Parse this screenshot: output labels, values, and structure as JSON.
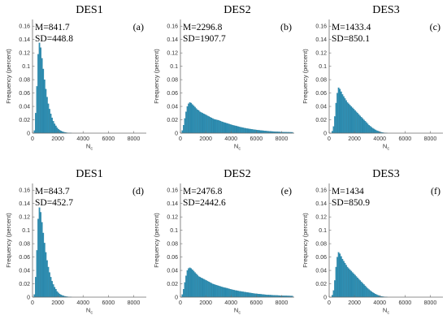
{
  "figure": {
    "bar_color": "#2e8fb3",
    "bar_edge_color": "#1f6f8f"
  },
  "chart_data": [
    {
      "type": "bar",
      "title": "DES1",
      "panel_letter": "(a)",
      "mean_text": "M=841.7",
      "sd_text": "SD=448.8",
      "mean": 841.7,
      "sd": 448.8,
      "xlabel": "N",
      "xlabel_sub": "c",
      "ylabel": "Frequency (percent)",
      "xlim": [
        0,
        9000
      ],
      "ylim": [
        0,
        0.17
      ],
      "xticks": [
        0,
        2000,
        4000,
        6000,
        8000
      ],
      "yticks": [
        0,
        0.02,
        0.04,
        0.06,
        0.08,
        0.1,
        0.12,
        0.14,
        0.16
      ],
      "ytick_labels": [
        "0",
        "0.02",
        "0.04",
        "0.06",
        "0.08",
        "0.1",
        "0.12",
        "0.14",
        "0.16"
      ],
      "bin_start": 100,
      "bin_width": 100,
      "values": [
        0.004,
        0.03,
        0.07,
        0.118,
        0.135,
        0.128,
        0.112,
        0.096,
        0.08,
        0.066,
        0.054,
        0.044,
        0.036,
        0.029,
        0.023,
        0.018,
        0.014,
        0.011,
        0.008,
        0.006,
        0.0045,
        0.0034,
        0.0025,
        0.0018,
        0.0013,
        0.0009,
        0.0006,
        0.0004,
        0.0003,
        0.0002
      ]
    },
    {
      "type": "bar",
      "title": "DES2",
      "panel_letter": "(b)",
      "mean_text": "M=2296.8",
      "sd_text": "SD=1907.7",
      "mean": 2296.8,
      "sd": 1907.7,
      "xlabel": "N",
      "xlabel_sub": "c",
      "ylabel": "Frequency (percent)",
      "xlim": [
        0,
        9000
      ],
      "ylim": [
        0,
        0.17
      ],
      "xticks": [
        0,
        2000,
        4000,
        6000,
        8000
      ],
      "yticks": [
        0,
        0.02,
        0.04,
        0.06,
        0.08,
        0.1,
        0.12,
        0.14,
        0.16
      ],
      "ytick_labels": [
        "0",
        "0.02",
        "0.04",
        "0.06",
        "0.08",
        "0.1",
        "0.12",
        "0.14",
        "0.16"
      ],
      "bin_start": 100,
      "bin_width": 100,
      "values": [
        0.004,
        0.012,
        0.022,
        0.032,
        0.04,
        0.044,
        0.046,
        0.045,
        0.043,
        0.041,
        0.039,
        0.037,
        0.035,
        0.034,
        0.032,
        0.031,
        0.03,
        0.029,
        0.028,
        0.027,
        0.026,
        0.025,
        0.024,
        0.023,
        0.022,
        0.021,
        0.0205,
        0.02,
        0.0195,
        0.019,
        0.0182,
        0.0175,
        0.0168,
        0.0161,
        0.0155,
        0.0149,
        0.0143,
        0.0137,
        0.0131,
        0.0125,
        0.012,
        0.0115,
        0.011,
        0.0105,
        0.01,
        0.0095,
        0.009,
        0.0086,
        0.0082,
        0.0078,
        0.0074,
        0.007,
        0.0067,
        0.0064,
        0.0061,
        0.0058,
        0.0055,
        0.0052,
        0.005,
        0.0047,
        0.0045,
        0.0043,
        0.0041,
        0.0039,
        0.0037,
        0.0035,
        0.0033,
        0.0031,
        0.003,
        0.0028,
        0.0027,
        0.0025,
        0.0024,
        0.0023,
        0.0022,
        0.0021,
        0.002,
        0.0019,
        0.0018,
        0.0017,
        0.0016,
        0.0016,
        0.0015,
        0.0015,
        0.0014,
        0.0014,
        0.0013,
        0.0013
      ]
    },
    {
      "type": "bar",
      "title": "DES3",
      "panel_letter": "(c)",
      "mean_text": "M=1433.4",
      "sd_text": "SD=850.1",
      "mean": 1433.4,
      "sd": 850.1,
      "xlabel": "N",
      "xlabel_sub": "c",
      "ylabel": "Frequency (percent)",
      "xlim": [
        0,
        9000
      ],
      "ylim": [
        0,
        0.17
      ],
      "xticks": [
        0,
        2000,
        4000,
        6000,
        8000
      ],
      "yticks": [
        0,
        0.02,
        0.04,
        0.06,
        0.08,
        0.1,
        0.12,
        0.14,
        0.16
      ],
      "ytick_labels": [
        "0",
        "0.02",
        "0.04",
        "0.06",
        "0.08",
        "0.1",
        "0.12",
        "0.14",
        "0.16"
      ],
      "bin_start": 200,
      "bin_width": 100,
      "values": [
        0.003,
        0.01,
        0.025,
        0.045,
        0.06,
        0.068,
        0.066,
        0.062,
        0.058,
        0.055,
        0.052,
        0.049,
        0.046,
        0.044,
        0.042,
        0.04,
        0.038,
        0.036,
        0.034,
        0.032,
        0.03,
        0.028,
        0.026,
        0.024,
        0.022,
        0.02,
        0.018,
        0.016,
        0.014,
        0.012,
        0.0105,
        0.009,
        0.0075,
        0.0062,
        0.005,
        0.004,
        0.0032,
        0.0025,
        0.0018,
        0.0013,
        0.0009,
        0.0006,
        0.0004,
        0.0003
      ]
    },
    {
      "type": "bar",
      "title": "DES1",
      "panel_letter": "(d)",
      "mean_text": "M=843.7",
      "sd_text": "SD=452.7",
      "mean": 843.7,
      "sd": 452.7,
      "xlabel": "N",
      "xlabel_sub": "c",
      "ylabel": "Frequency (percent)",
      "xlim": [
        0,
        9000
      ],
      "ylim": [
        0,
        0.17
      ],
      "xticks": [
        0,
        2000,
        4000,
        6000,
        8000
      ],
      "yticks": [
        0,
        0.02,
        0.04,
        0.06,
        0.08,
        0.1,
        0.12,
        0.14,
        0.16
      ],
      "ytick_labels": [
        "0",
        "0.02",
        "0.04",
        "0.06",
        "0.08",
        "0.1",
        "0.12",
        "0.14",
        "0.16"
      ],
      "bin_start": 100,
      "bin_width": 100,
      "values": [
        0.004,
        0.03,
        0.07,
        0.117,
        0.134,
        0.127,
        0.112,
        0.096,
        0.081,
        0.067,
        0.055,
        0.045,
        0.037,
        0.03,
        0.024,
        0.019,
        0.015,
        0.012,
        0.0085,
        0.0065,
        0.0048,
        0.0036,
        0.0027,
        0.002,
        0.0014,
        0.001,
        0.0007,
        0.0005,
        0.0003,
        0.0002
      ]
    },
    {
      "type": "bar",
      "title": "DES2",
      "panel_letter": "(e)",
      "mean_text": "M=2476.8",
      "sd_text": "SD=2442.6",
      "mean": 2476.8,
      "sd": 2442.6,
      "xlabel": "N",
      "xlabel_sub": "c",
      "ylabel": "Frequency (percent)",
      "xlim": [
        0,
        9000
      ],
      "ylim": [
        0,
        0.17
      ],
      "xticks": [
        0,
        2000,
        4000,
        6000,
        8000
      ],
      "yticks": [
        0,
        0.02,
        0.04,
        0.06,
        0.08,
        0.1,
        0.12,
        0.14,
        0.16
      ],
      "ytick_labels": [
        "0",
        "0.02",
        "0.04",
        "0.06",
        "0.08",
        "0.1",
        "0.12",
        "0.14",
        "0.16"
      ],
      "bin_start": 100,
      "bin_width": 100,
      "values": [
        0.004,
        0.012,
        0.022,
        0.032,
        0.04,
        0.043,
        0.044,
        0.043,
        0.041,
        0.039,
        0.037,
        0.035,
        0.033,
        0.031,
        0.03,
        0.029,
        0.028,
        0.027,
        0.026,
        0.025,
        0.024,
        0.023,
        0.022,
        0.021,
        0.02,
        0.0193,
        0.0186,
        0.018,
        0.0174,
        0.0168,
        0.0162,
        0.0156,
        0.015,
        0.0145,
        0.014,
        0.0135,
        0.013,
        0.0125,
        0.012,
        0.0115,
        0.011,
        0.0106,
        0.0102,
        0.0098,
        0.0094,
        0.009,
        0.0087,
        0.0084,
        0.0081,
        0.0078,
        0.0075,
        0.0072,
        0.0069,
        0.0066,
        0.0063,
        0.006,
        0.0057,
        0.0054,
        0.0052,
        0.005,
        0.0048,
        0.0046,
        0.0044,
        0.0042,
        0.004,
        0.0038,
        0.0036,
        0.0034,
        0.0033,
        0.0032,
        0.0031,
        0.003,
        0.0029,
        0.0028,
        0.0027,
        0.0026,
        0.0025,
        0.0024,
        0.0023,
        0.0022,
        0.0021,
        0.0021,
        0.002,
        0.002,
        0.0019,
        0.0019,
        0.0018,
        0.0018
      ]
    },
    {
      "type": "bar",
      "title": "DES3",
      "panel_letter": "(f)",
      "mean_text": "M=1434",
      "sd_text": "SD=850.9",
      "mean": 1434,
      "sd": 850.9,
      "xlabel": "N",
      "xlabel_sub": "c",
      "ylabel": "Frequency (percent)",
      "xlim": [
        0,
        9000
      ],
      "ylim": [
        0,
        0.17
      ],
      "xticks": [
        0,
        2000,
        4000,
        6000,
        8000
      ],
      "yticks": [
        0,
        0.02,
        0.04,
        0.06,
        0.08,
        0.1,
        0.12,
        0.14,
        0.16
      ],
      "ytick_labels": [
        "0",
        "0.02",
        "0.04",
        "0.06",
        "0.08",
        "0.1",
        "0.12",
        "0.14",
        "0.16"
      ],
      "bin_start": 200,
      "bin_width": 100,
      "values": [
        0.003,
        0.01,
        0.025,
        0.045,
        0.06,
        0.067,
        0.065,
        0.061,
        0.057,
        0.054,
        0.051,
        0.048,
        0.045,
        0.043,
        0.041,
        0.039,
        0.037,
        0.035,
        0.033,
        0.031,
        0.029,
        0.027,
        0.025,
        0.023,
        0.021,
        0.019,
        0.017,
        0.015,
        0.013,
        0.0115,
        0.01,
        0.0085,
        0.0072,
        0.006,
        0.0048,
        0.0038,
        0.003,
        0.0023,
        0.0017,
        0.0012,
        0.0008,
        0.0006,
        0.0004,
        0.0003
      ]
    }
  ]
}
